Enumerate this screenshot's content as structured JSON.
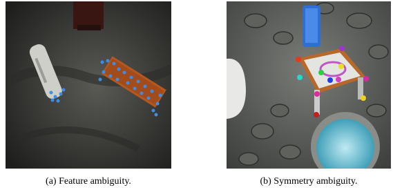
{
  "figure": {
    "panels": [
      {
        "caption": "(a) Feature ambiguity."
      },
      {
        "caption": "(b) Symmetry ambiguity."
      }
    ]
  }
}
